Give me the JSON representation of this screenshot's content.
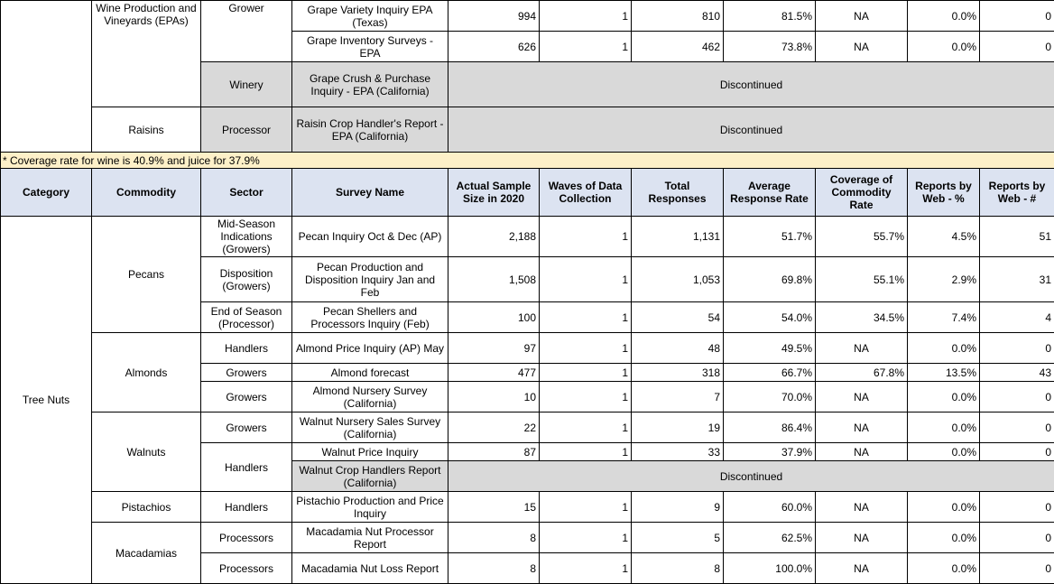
{
  "top_section": {
    "commodities": [
      {
        "name": "Wine Production and Vineyards (EPAs)",
        "sectors": [
          {
            "name": "Grower",
            "surveys": [
              {
                "name": "Grape Variety Inquiry EPA (Texas)",
                "sample": "994",
                "waves": "1",
                "responses": "810",
                "rate": "81.5%",
                "coverage": "NA",
                "web_pct": "0.0%",
                "web_num": "0"
              },
              {
                "name": "Grape Inventory Surveys - EPA",
                "sample": "626",
                "waves": "1",
                "responses": "462",
                "rate": "73.8%",
                "coverage": "NA",
                "web_pct": "0.0%",
                "web_num": "0"
              }
            ]
          },
          {
            "name": "Winery",
            "gray": true,
            "surveys": [
              {
                "name": "Grape Crush & Purchase Inquiry - EPA (California)",
                "discontinued": "Discontinued"
              }
            ]
          }
        ]
      },
      {
        "name": "Raisins",
        "sectors": [
          {
            "name": "Processor",
            "gray": true,
            "surveys": [
              {
                "name": "Raisin Crop Handler's Report - EPA (California)",
                "discontinued": "Discontinued"
              }
            ]
          }
        ]
      }
    ]
  },
  "note": "* Coverage rate for wine is 40.9% and juice for 37.9%",
  "header": [
    "Category",
    "Commodity",
    "Sector",
    "Survey Name",
    "Actual Sample Size in 2020",
    "Waves of Data Collection",
    "Total Responses",
    "Average Response Rate",
    "Coverage of Commodity Rate",
    "Reports by Web - %",
    "Reports by Web - #"
  ],
  "categories": [
    {
      "name": "Tree Nuts",
      "commodities": [
        {
          "name": "Pecans",
          "sectors": [
            {
              "name": "Mid-Season Indications (Growers)",
              "surveys": [
                {
                  "name": "Pecan Inquiry Oct & Dec (AP)",
                  "sample": "2,188",
                  "waves": "1",
                  "responses": "1,131",
                  "rate": "51.7%",
                  "coverage": "55.7%",
                  "web_pct": "4.5%",
                  "web_num": "51"
                }
              ]
            },
            {
              "name": "Disposition (Growers)",
              "surveys": [
                {
                  "name": "Pecan Production and Disposition Inquiry Jan and Feb",
                  "sample": "1,508",
                  "waves": "1",
                  "responses": "1,053",
                  "rate": "69.8%",
                  "coverage": "55.1%",
                  "web_pct": "2.9%",
                  "web_num": "31"
                }
              ]
            },
            {
              "name": "End of Season (Processor)",
              "surveys": [
                {
                  "name": "Pecan Shellers and Processors Inquiry (Feb)",
                  "sample": "100",
                  "waves": "1",
                  "responses": "54",
                  "rate": "54.0%",
                  "coverage": "34.5%",
                  "web_pct": "7.4%",
                  "web_num": "4"
                }
              ]
            }
          ]
        },
        {
          "name": "Almonds",
          "sectors": [
            {
              "name": "Handlers",
              "surveys": [
                {
                  "name": "Almond Price Inquiry (AP) May",
                  "sample": "97",
                  "waves": "1",
                  "responses": "48",
                  "rate": "49.5%",
                  "coverage": "NA",
                  "web_pct": "0.0%",
                  "web_num": "0"
                }
              ]
            },
            {
              "name": "Growers",
              "surveys": [
                {
                  "name": "Almond forecast",
                  "sample": "477",
                  "waves": "1",
                  "responses": "318",
                  "rate": "66.7%",
                  "coverage": "67.8%",
                  "web_pct": "13.5%",
                  "web_num": "43"
                }
              ]
            },
            {
              "name": "Growers",
              "surveys": [
                {
                  "name": "Almond Nursery Survey (California)",
                  "sample": "10",
                  "waves": "1",
                  "responses": "7",
                  "rate": "70.0%",
                  "coverage": "NA",
                  "web_pct": "0.0%",
                  "web_num": "0"
                }
              ]
            }
          ]
        },
        {
          "name": "Walnuts",
          "sectors": [
            {
              "name": "Growers",
              "surveys": [
                {
                  "name": "Walnut Nursery Sales Survey (California)",
                  "sample": "22",
                  "waves": "1",
                  "responses": "19",
                  "rate": "86.4%",
                  "coverage": "NA",
                  "web_pct": "0.0%",
                  "web_num": "0"
                }
              ]
            },
            {
              "name": "Handlers",
              "surveys": [
                {
                  "name": "Walnut Price Inquiry",
                  "sample": "87",
                  "waves": "1",
                  "responses": "33",
                  "rate": "37.9%",
                  "coverage": "NA",
                  "web_pct": "0.0%",
                  "web_num": "0"
                },
                {
                  "name": "Walnut Crop Handlers Report (California)",
                  "discontinued": "Discontinued"
                }
              ]
            }
          ]
        },
        {
          "name": "Pistachios",
          "sectors": [
            {
              "name": "Handlers",
              "surveys": [
                {
                  "name": "Pistachio Production and Price Inquiry",
                  "sample": "15",
                  "waves": "1",
                  "responses": "9",
                  "rate": "60.0%",
                  "coverage": "NA",
                  "web_pct": "0.0%",
                  "web_num": "0"
                }
              ]
            }
          ]
        },
        {
          "name": "Macadamias",
          "sectors": [
            {
              "name": "Processors",
              "surveys": [
                {
                  "name": "Macadamia Nut Processor Report",
                  "sample": "8",
                  "waves": "1",
                  "responses": "5",
                  "rate": "62.5%",
                  "coverage": "NA",
                  "web_pct": "0.0%",
                  "web_num": "0"
                }
              ]
            },
            {
              "name": "Processors",
              "surveys": [
                {
                  "name": "Macadamia Nut Loss Report",
                  "sample": "8",
                  "waves": "1",
                  "responses": "8",
                  "rate": "100.0%",
                  "coverage": "NA",
                  "web_pct": "0.0%",
                  "web_num": "0"
                }
              ]
            }
          ]
        }
      ]
    }
  ]
}
